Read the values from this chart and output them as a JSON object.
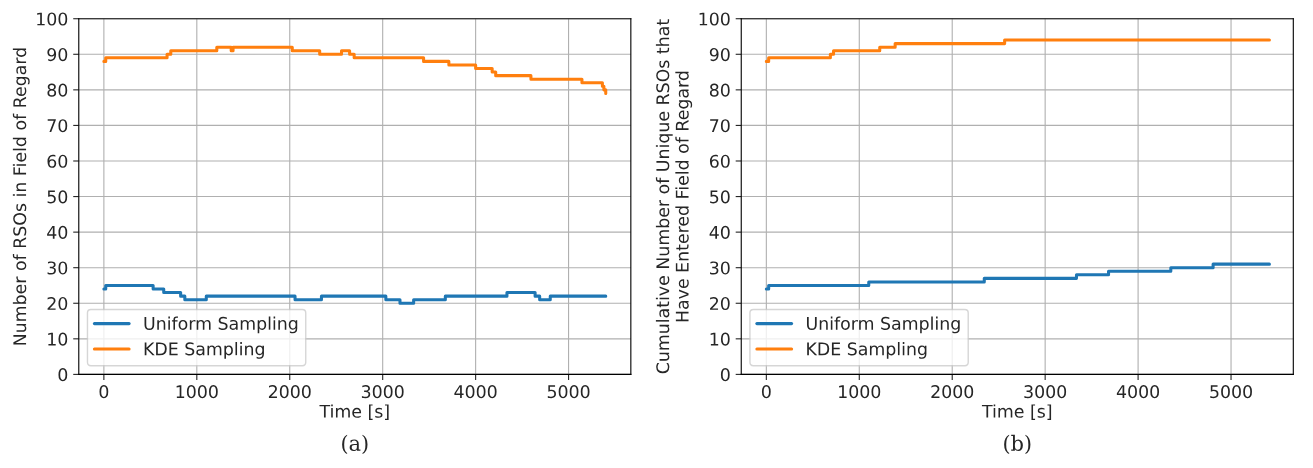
{
  "chart_data": [
    {
      "type": "step",
      "xlabel": "Time [s]",
      "ylabel": "Number of RSOs in Field of Regard",
      "annotations": [
        "(a)"
      ],
      "xlim": [
        -270,
        5670
      ],
      "xticks": [
        0,
        1000,
        2000,
        3000,
        4000,
        5000
      ],
      "ylim": [
        0,
        100
      ],
      "yticks": [
        0,
        10,
        20,
        30,
        40,
        50,
        60,
        70,
        80,
        90,
        100
      ],
      "grid": true,
      "legend": "bottom left",
      "series": [
        {
          "name": "Uniform Sampling",
          "color": "#1f77b4",
          "x": [
            0,
            20,
            530,
            644,
            826,
            871,
            1102,
            2057,
            2341,
            3034,
            3186,
            3333,
            3674,
            4337,
            4640,
            4689,
            4803,
            5400
          ],
          "values": [
            24,
            25,
            24,
            23,
            22,
            21,
            22,
            21,
            22,
            21,
            20,
            21,
            22,
            23,
            22,
            21,
            22,
            22
          ]
        },
        {
          "name": "KDE Sampling",
          "color": "#ff7f0e",
          "x": [
            0,
            20,
            680,
            720,
            1215,
            1370,
            1390,
            2027,
            2322,
            2557,
            2644,
            2693,
            3440,
            3712,
            4000,
            4178,
            4216,
            4595,
            5144,
            5364,
            5380,
            5400
          ],
          "values": [
            88,
            89,
            90,
            91,
            92,
            91,
            92,
            91,
            90,
            91,
            90,
            89,
            88,
            87,
            86,
            85,
            84,
            83,
            82,
            81,
            80,
            79
          ]
        }
      ]
    },
    {
      "type": "step",
      "xlabel": "Time [s]",
      "ylabel": "Cumulative Number of Unique RSOs that\nHave Entered Field of Regard",
      "annotations": [
        "(b)"
      ],
      "xlim": [
        -270,
        5670
      ],
      "xticks": [
        0,
        1000,
        2000,
        3000,
        4000,
        5000
      ],
      "ylim": [
        0,
        100
      ],
      "yticks": [
        0,
        10,
        20,
        30,
        40,
        50,
        60,
        70,
        80,
        90,
        100
      ],
      "grid": true,
      "legend": "bottom left",
      "series": [
        {
          "name": "Uniform Sampling",
          "color": "#1f77b4",
          "x": [
            0,
            25,
            1102,
            2345,
            3337,
            3682,
            4352,
            4807,
            5413
          ],
          "values": [
            24,
            25,
            26,
            27,
            28,
            29,
            30,
            31,
            31
          ]
        },
        {
          "name": "KDE Sampling",
          "color": "#ff7f0e",
          "x": [
            0,
            25,
            689,
            723,
            1220,
            1386,
            2564,
            5413
          ],
          "values": [
            88,
            89,
            90,
            91,
            92,
            93,
            94,
            94
          ]
        }
      ]
    }
  ]
}
